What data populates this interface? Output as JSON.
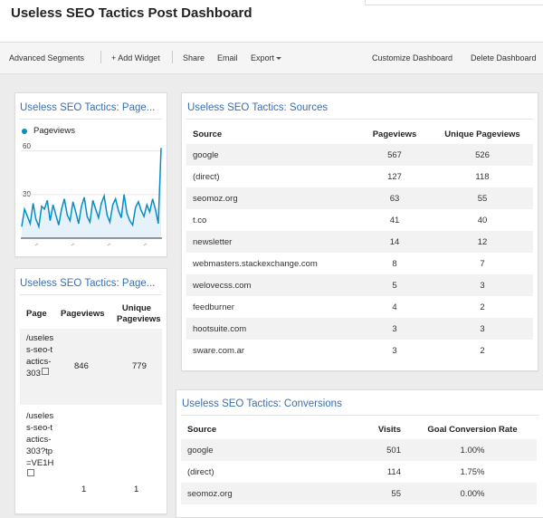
{
  "header": {
    "title": "Useless SEO Tactics Post Dashboard"
  },
  "toolbar": {
    "advanced_segments": "Advanced Segments",
    "add_widget": "+ Add Widget",
    "share": "Share",
    "email": "Email",
    "export": "Export",
    "customize": "Customize Dashboard",
    "delete": "Delete Dashboard"
  },
  "pageviews_widget": {
    "title": "Useless SEO Tactics: Page...",
    "legend": "Pageviews",
    "y_ticks": [
      "60",
      "30"
    ],
    "color": "#058dc7"
  },
  "chart_data": {
    "type": "area",
    "title": "",
    "series": [
      {
        "name": "Pageviews",
        "values": [
          8,
          20,
          15,
          10,
          24,
          13,
          8,
          22,
          20,
          26,
          12,
          23,
          16,
          9,
          20,
          27,
          16,
          12,
          25,
          18,
          10,
          22,
          28,
          15,
          11,
          26,
          20,
          14,
          24,
          29,
          16,
          11,
          23,
          27,
          19,
          14,
          30,
          17,
          12,
          9,
          21,
          25,
          19,
          15,
          23,
          18,
          27,
          20,
          10,
          62
        ]
      }
    ],
    "ylim": [
      0,
      66
    ],
    "y_ticks": [
      30,
      60
    ]
  },
  "page_widget": {
    "title": "Useless SEO Tactics: Page...",
    "columns": [
      "Page",
      "Pageviews",
      "Unique Pageviews"
    ],
    "rows": [
      {
        "page": "/useless-seo-tactics-303",
        "pageviews": "846",
        "unique": "779"
      },
      {
        "page": "/useless-seo-tactics-303?tp=VE1H",
        "pageviews": "1",
        "unique": "1"
      }
    ]
  },
  "sources": {
    "title": "Useless SEO Tactics: Sources",
    "columns": [
      "Source",
      "Pageviews",
      "Unique Pageviews"
    ],
    "rows": [
      [
        "google",
        "567",
        "526"
      ],
      [
        "(direct)",
        "127",
        "118"
      ],
      [
        "seomoz.org",
        "63",
        "55"
      ],
      [
        "t.co",
        "41",
        "40"
      ],
      [
        "newsletter",
        "14",
        "12"
      ],
      [
        "webmasters.stackexchange.com",
        "8",
        "7"
      ],
      [
        "welovecss.com",
        "5",
        "3"
      ],
      [
        "feedburner",
        "4",
        "2"
      ],
      [
        "hootsuite.com",
        "3",
        "3"
      ],
      [
        "sware.com.ar",
        "3",
        "2"
      ]
    ]
  },
  "conversions": {
    "title": "Useless SEO Tactics: Conversions",
    "columns": [
      "Source",
      "Visits",
      "Goal Conversion Rate"
    ],
    "rows": [
      [
        "google",
        "501",
        "1.00%"
      ],
      [
        "(direct)",
        "114",
        "1.75%"
      ],
      [
        "seomoz.org",
        "55",
        "0.00%"
      ]
    ]
  }
}
